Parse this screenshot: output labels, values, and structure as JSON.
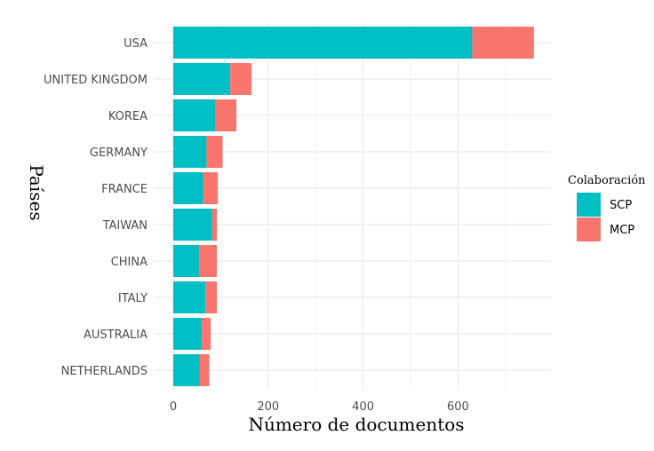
{
  "chart_data": {
    "type": "bar",
    "orientation": "horizontal",
    "stacked": true,
    "categories": [
      "USA",
      "UNITED KINGDOM",
      "KOREA",
      "GERMANY",
      "FRANCE",
      "TAIWAN",
      "CHINA",
      "ITALY",
      "AUSTRALIA",
      "NETHERLANDS"
    ],
    "series": [
      {
        "name": "SCP",
        "color": "#00BFC4",
        "values": [
          630,
          120,
          88,
          70,
          63,
          82,
          55,
          68,
          60,
          56
        ]
      },
      {
        "name": "MCP",
        "color": "#F8766D",
        "values": [
          130,
          45,
          45,
          34,
          31,
          10,
          37,
          24,
          19,
          20
        ]
      }
    ],
    "xlabel": "Número de documentos",
    "ylabel": "Países",
    "x_ticks": [
      0,
      200,
      400,
      600
    ],
    "xlim": [
      0,
      800
    ],
    "grid": true,
    "legend": {
      "title": "Colaboración",
      "position": "right"
    }
  }
}
